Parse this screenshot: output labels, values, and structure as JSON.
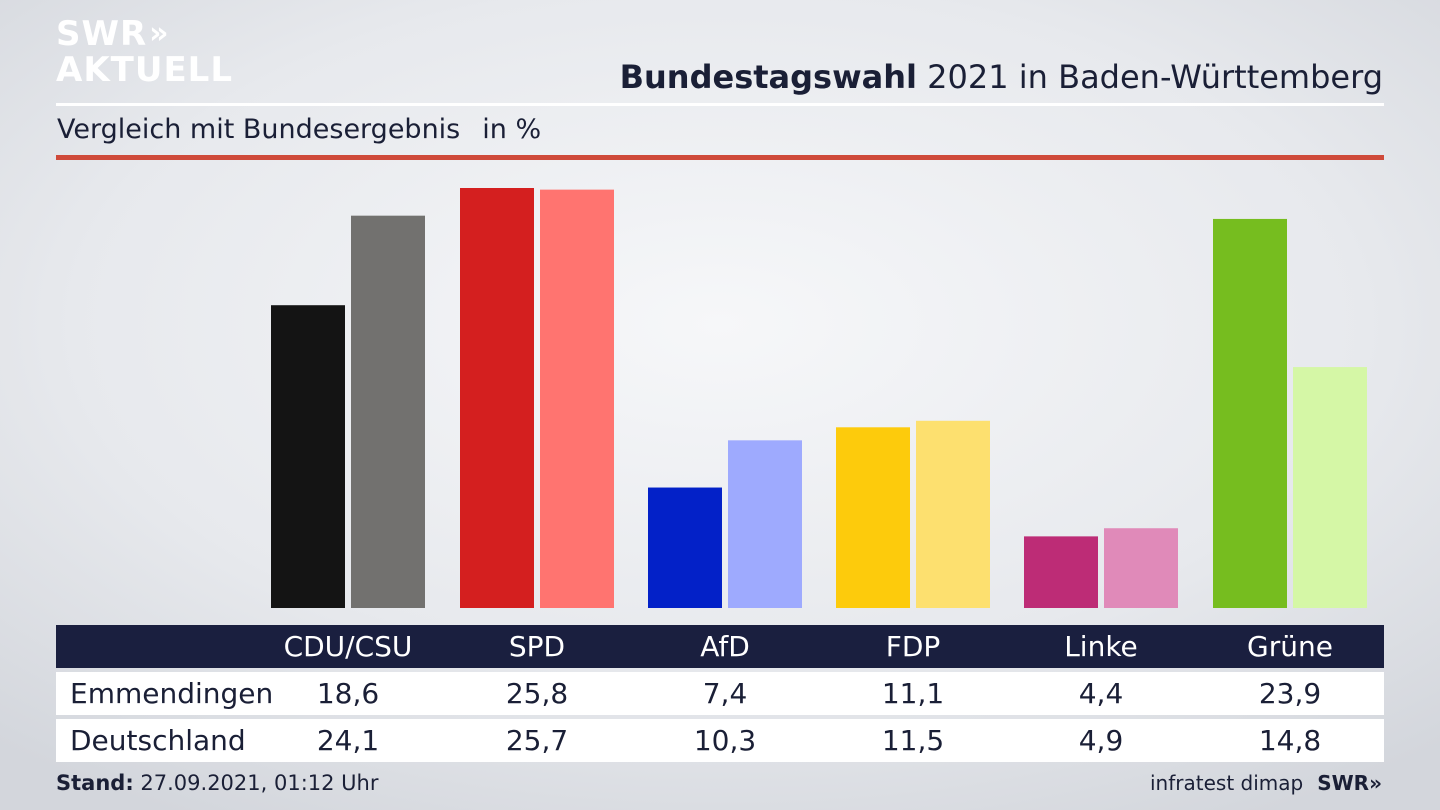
{
  "logo": {
    "line1": "SWR",
    "line1_chevrons": "»",
    "line2": "AKTUELL"
  },
  "header": {
    "title_bold": "Bundestagswahl",
    "title_rest": " 2021 in Baden-Württemberg",
    "subtitle": "Vergleich mit Bundesergebnis",
    "unit": "in %"
  },
  "chart_data": {
    "type": "bar",
    "categories": [
      "CDU/CSU",
      "SPD",
      "AfD",
      "FDP",
      "Linke",
      "Grüne"
    ],
    "series": [
      {
        "name": "Emmendingen",
        "values": [
          18.6,
          25.8,
          7.4,
          11.1,
          4.4,
          23.9
        ],
        "colors": [
          "#141414",
          "#d41f1f",
          "#0321c8",
          "#fdcb0c",
          "#bd2c76",
          "#76bd1f"
        ]
      },
      {
        "name": "Deutschland",
        "values": [
          24.1,
          25.7,
          10.3,
          11.5,
          4.9,
          14.8
        ],
        "colors": [
          "#72716f",
          "#ff7470",
          "#9eaafe",
          "#fde06f",
          "#e08ab9",
          "#d5f7a6"
        ]
      }
    ],
    "ylim": [
      0,
      25.8
    ]
  },
  "table": {
    "headers": [
      "CDU/CSU",
      "SPD",
      "AfD",
      "FDP",
      "Linke",
      "Grüne"
    ],
    "rows": [
      {
        "label": "Emmendingen",
        "values": [
          "18,6",
          "25,8",
          "7,4",
          "11,1",
          "4,4",
          "23,9"
        ]
      },
      {
        "label": "Deutschland",
        "values": [
          "24,1",
          "25,7",
          "10,3",
          "11,5",
          "4,9",
          "14,8"
        ]
      }
    ]
  },
  "footer": {
    "stand_label": "Stand:",
    "stand_value": " 27.09.2021, 01:12 Uhr",
    "source": "infratest dimap",
    "brand": "SWR»"
  }
}
